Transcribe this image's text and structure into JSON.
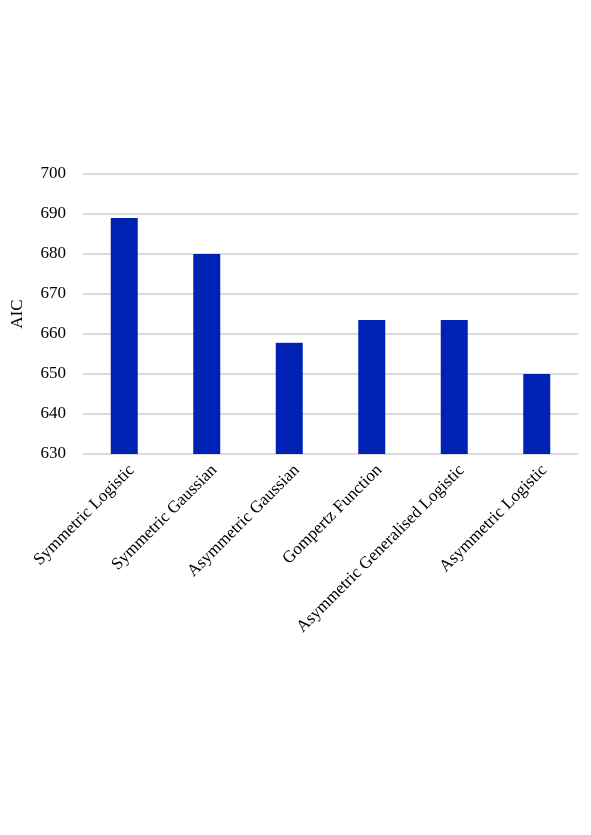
{
  "chart_data": {
    "type": "bar",
    "y_label": "AIC",
    "categories": [
      "Symmetric Logistic",
      "Symmetric Gaussian",
      "Asymmetric Gaussian",
      "Gompertz Function",
      "Asymmetric Generalised Logistic",
      "Asymmetric Logistic"
    ],
    "values": [
      689,
      680,
      657.8,
      663.5,
      663.5,
      650
    ],
    "color": "#0022b4",
    "ylim": [
      630,
      700
    ],
    "yticks": [
      630,
      640,
      650,
      660,
      670,
      680,
      690,
      700
    ],
    "grid": true
  }
}
